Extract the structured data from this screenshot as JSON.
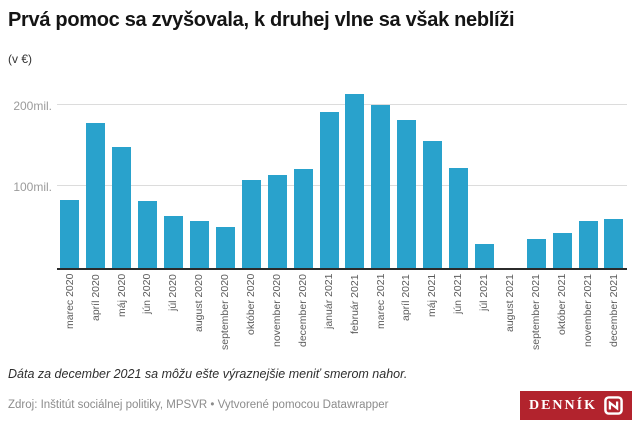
{
  "header": {
    "title": "Prvá pomoc sa zvyšovala, k druhej vlne sa však neblíži",
    "subtitle": "(v €)"
  },
  "chart_data": {
    "type": "bar",
    "title": "Prvá pomoc sa zvyšovala, k druhej vlne sa však neblíži",
    "unit_label": "(v €)",
    "categories": [
      "marec 2020",
      "apríl 2020",
      "máj 2020",
      "jún 2020",
      "júl 2020",
      "august 2020",
      "september 2020",
      "október 2020",
      "november 2020",
      "december 2020",
      "január 2021",
      "február 2021",
      "marec 2021",
      "apríl 2021",
      "máj 2021",
      "jún 2021",
      "júl 2021",
      "august 2021",
      "september 2021",
      "október 2021",
      "november 2021",
      "december 2021"
    ],
    "values": [
      84,
      178,
      148,
      82,
      64,
      58,
      50,
      108,
      114,
      122,
      191,
      214,
      200,
      182,
      156,
      123,
      30,
      0,
      36,
      43,
      58,
      60
    ],
    "values_unit": "mil. €",
    "xlabel": "",
    "ylabel": "",
    "ylim": [
      0,
      220
    ],
    "yticks": [
      {
        "value": 100,
        "label": "100mil."
      },
      {
        "value": 200,
        "label": "200mil."
      }
    ],
    "grid": true,
    "legend": "none",
    "bar_color": "#29a2cc"
  },
  "footer": {
    "note": "Dáta za december 2021 sa môžu ešte výraznejšie meniť smerom nahor.",
    "source": "Zdroj: Inštitút sociálnej politiky, MPSVR • Vytvorené pomocou Datawrapper",
    "logo_text": "DENNÍK",
    "logo_color": "#b2232d"
  },
  "colors": {
    "bar": "#29a2cc",
    "gridline": "#dcdcdc",
    "axis_line": "#2b2b2b",
    "ytick_text": "#9b9b9b",
    "xtick_text": "#5c5c5c",
    "logo_background": "#b2232d"
  }
}
